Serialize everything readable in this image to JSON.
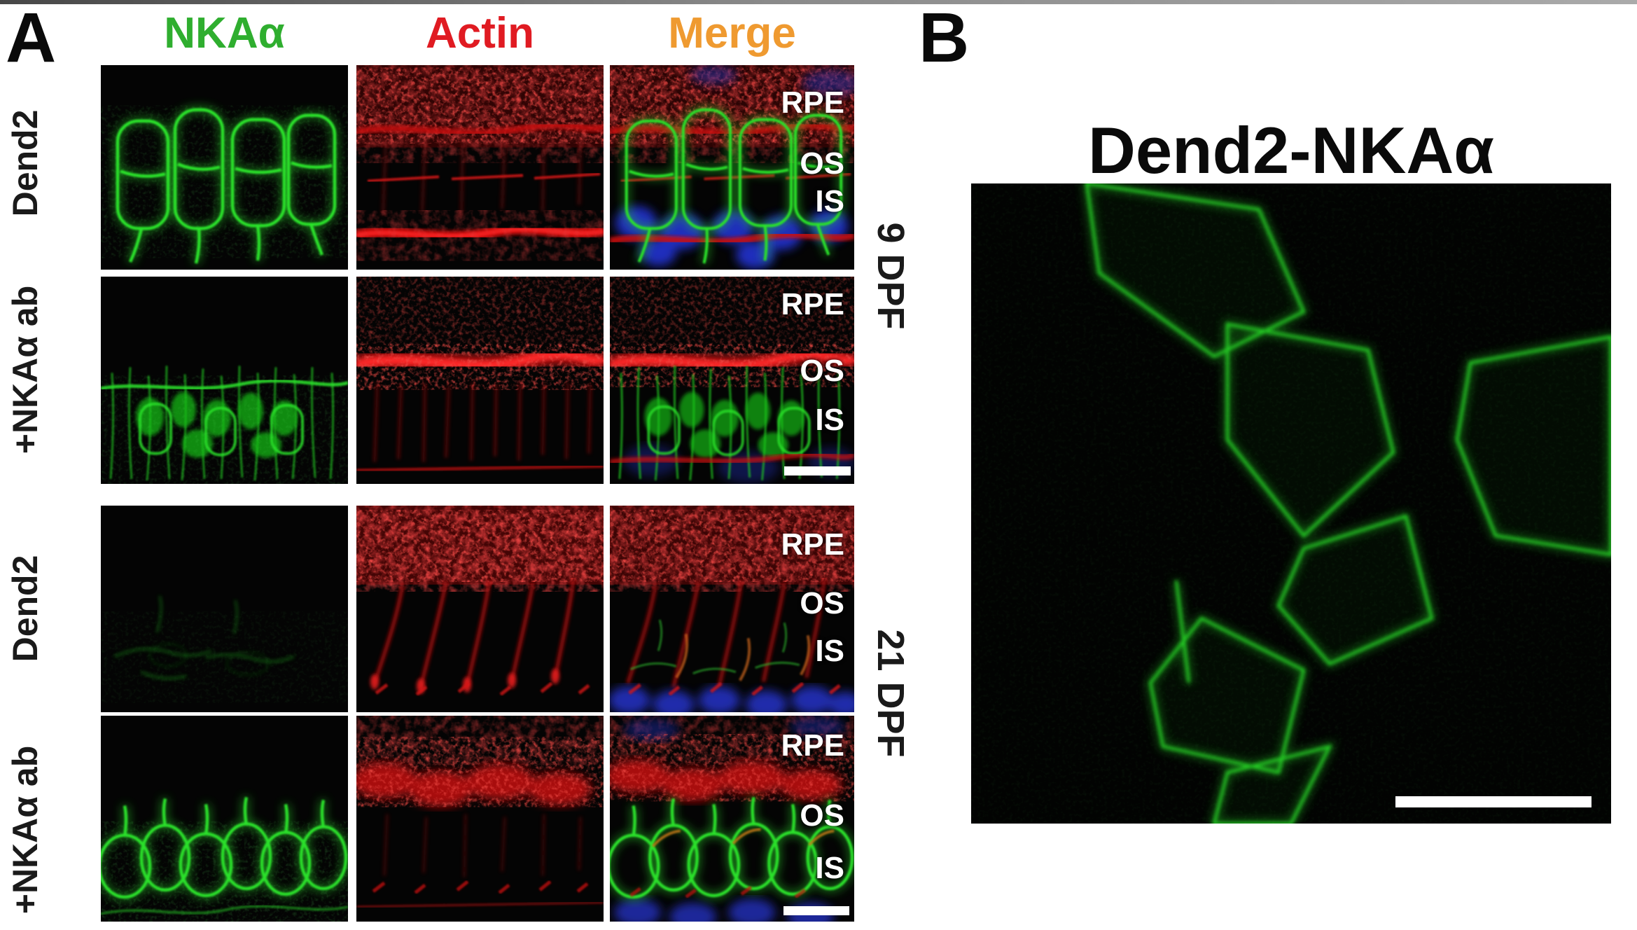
{
  "page": {
    "background": "#ffffff",
    "top_edge_color": "#8a8a8a"
  },
  "panel_a": {
    "label": "A",
    "columns": [
      {
        "label": "NKAα",
        "color": "#2fae2f"
      },
      {
        "label": "Actin",
        "color": "#e01b22"
      },
      {
        "label": "Merge",
        "color": "#ef9a30"
      }
    ],
    "rows": [
      {
        "label": "Dend2"
      },
      {
        "label": "+NKAα ab"
      },
      {
        "label": "Dend2"
      },
      {
        "label": "+NKAα ab"
      }
    ],
    "age_groups": [
      {
        "label": "9 DPF"
      },
      {
        "label": "21 DPF"
      }
    ],
    "layer_labels": [
      "RPE",
      "OS",
      "IS"
    ]
  },
  "panel_b": {
    "label": "B",
    "title": "Dend2-NKAα"
  },
  "colors": {
    "fluorescence_green": "#2be32b",
    "fluorescence_red": "#d51414",
    "nuclei_blue": "#2433cc",
    "scale_bar_white": "#ffffff",
    "overlay_label_white": "#ffffff",
    "panel_label_black": "#0a0a0a"
  }
}
